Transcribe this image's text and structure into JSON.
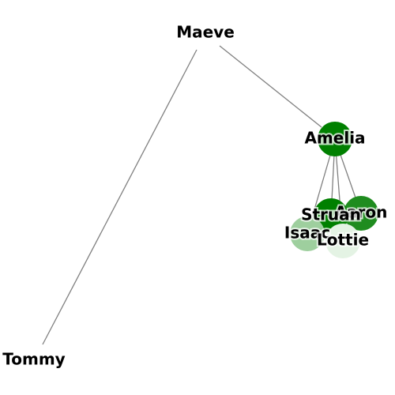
{
  "colors": {
    "edge": "#808080",
    "label_halo": "#ffffff",
    "node_shades": [
      "#ffffff",
      "#e4f3e4",
      "#9ecf9e",
      "#5aae5a",
      "#1f8c1f",
      "#008000"
    ]
  },
  "nodes": [
    {
      "id": "Maeve",
      "label": "Maeve",
      "shade": 0
    },
    {
      "id": "Amelia",
      "label": "Amelia",
      "shade": 5
    },
    {
      "id": "Tommy",
      "label": "Tommy",
      "shade": 0
    },
    {
      "id": "Aaron",
      "label": "Aaron",
      "shade": 4
    },
    {
      "id": "Struan",
      "label": "Struan",
      "shade": 5
    },
    {
      "id": "Isaac",
      "label": "Isaac",
      "shade": 2
    },
    {
      "id": "Lottie",
      "label": "Lottie",
      "shade": 1
    }
  ],
  "edges": [
    {
      "source": "Maeve",
      "target": "Tommy"
    },
    {
      "source": "Maeve",
      "target": "Amelia"
    },
    {
      "source": "Amelia",
      "target": "Aaron"
    },
    {
      "source": "Amelia",
      "target": "Struan"
    },
    {
      "source": "Amelia",
      "target": "Isaac"
    },
    {
      "source": "Amelia",
      "target": "Lottie"
    }
  ]
}
